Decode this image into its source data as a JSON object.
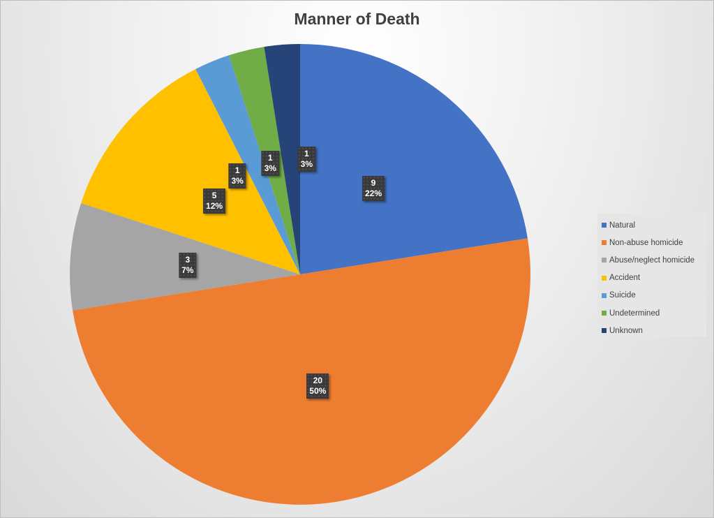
{
  "chart_data": {
    "type": "pie",
    "title": "Manner of Death",
    "start_angle": "12 o'clock, clockwise",
    "legend_position": "right",
    "slices": [
      {
        "label": "Natural",
        "value": 9,
        "percent": "22%",
        "color": "#4472c4"
      },
      {
        "label": "Non-abuse homicide",
        "value": 20,
        "percent": "50%",
        "color": "#ed7d31"
      },
      {
        "label": "Abuse/neglect homicide",
        "value": 3,
        "percent": "7%",
        "color": "#a5a5a5"
      },
      {
        "label": "Accident",
        "value": 5,
        "percent": "12%",
        "color": "#ffc000"
      },
      {
        "label": "Suicide",
        "value": 1,
        "percent": "3%",
        "color": "#5b9bd5"
      },
      {
        "label": "Undetermined",
        "value": 1,
        "percent": "3%",
        "color": "#70ad47"
      },
      {
        "label": "Unknown",
        "value": 1,
        "percent": "3%",
        "color": "#264478"
      }
    ]
  }
}
